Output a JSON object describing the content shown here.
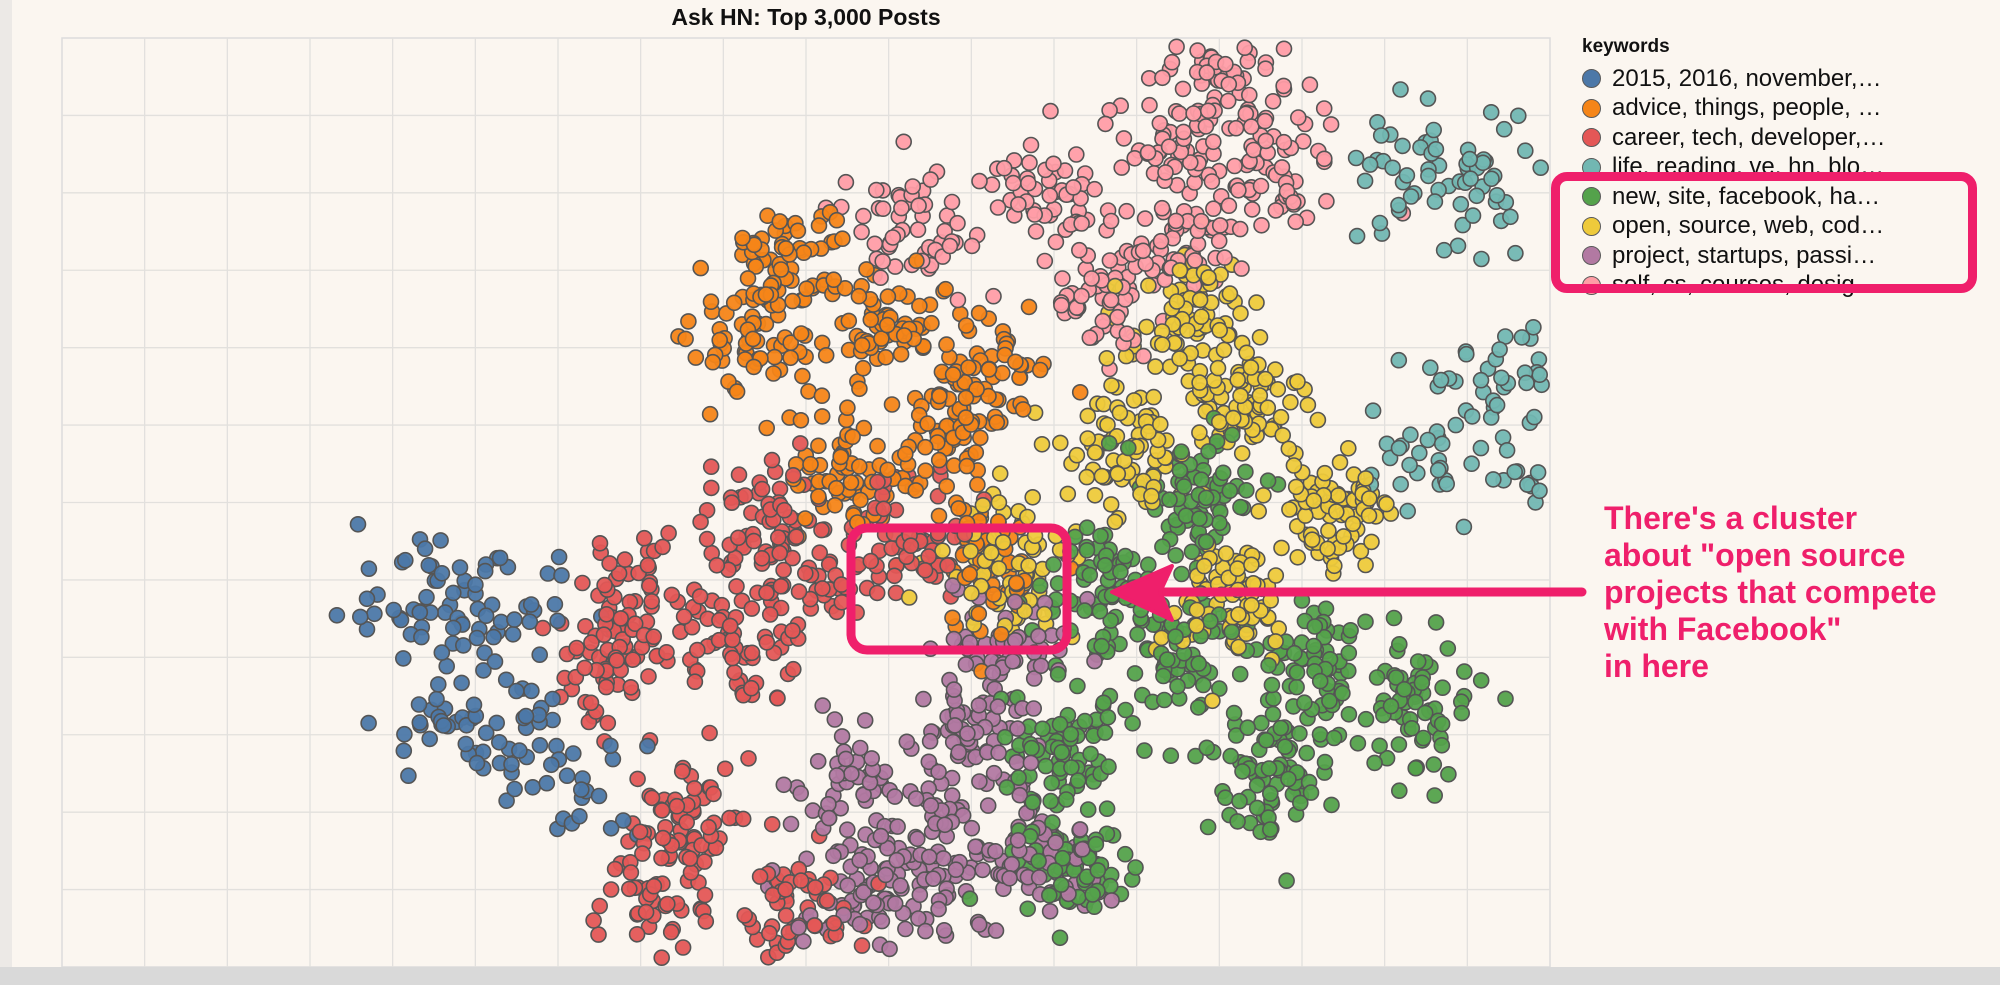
{
  "chart_data": {
    "type": "scatter",
    "title": "Ask HN: Top 3,000 Posts",
    "xlabel": "",
    "ylabel": "",
    "grid": true,
    "legend": {
      "title": "keywords",
      "placement": "top-right",
      "entries": [
        {
          "label": "2015, 2016, november,…",
          "color": "#4c78a8"
        },
        {
          "label": "advice, things, people, …",
          "color": "#f58518"
        },
        {
          "label": "career, tech, developer,…",
          "color": "#e45756"
        },
        {
          "label": "life, reading, ve, hn, blo…",
          "color": "#72b7b2"
        },
        {
          "label": "new, site, facebook, ha…",
          "color": "#54a24b"
        },
        {
          "label": "open, source, web, cod…",
          "color": "#eeca3b"
        },
        {
          "label": "project, startups, passi…",
          "color": "#b279a2"
        },
        {
          "label": "self, cs, courses, desig…",
          "color": "#ff9da6"
        }
      ]
    },
    "clusters": [
      {
        "series": "2015, 2016, november,…",
        "centers": [
          [
            4.0,
            4.5
          ],
          [
            4.5,
            4.6
          ],
          [
            5.3,
            4.6
          ],
          [
            4.6,
            2.7
          ],
          [
            5.0,
            2.8
          ],
          [
            5.6,
            2.9
          ],
          [
            6.3,
            1.9
          ],
          [
            5.3,
            3.9
          ]
        ],
        "approx_points": 150
      },
      {
        "series": "advice, things, people, …",
        "centers": [
          [
            8.8,
            8.9
          ],
          [
            8.4,
            7.8
          ],
          [
            9.9,
            8.0
          ],
          [
            10.6,
            6.6
          ],
          [
            9.5,
            6.0
          ],
          [
            11.2,
            7.5
          ],
          [
            11.2,
            4.9
          ]
        ],
        "approx_points": 420
      },
      {
        "series": "career, tech, developer,…",
        "centers": [
          [
            7.0,
            4.5
          ],
          [
            8.4,
            5.4
          ],
          [
            9.2,
            4.8
          ],
          [
            10.3,
            5.3
          ],
          [
            8.2,
            3.9
          ],
          [
            6.6,
            3.6
          ],
          [
            7.6,
            1.6
          ],
          [
            7.2,
            0.6
          ],
          [
            8.9,
            0.4
          ]
        ],
        "approx_points": 480
      },
      {
        "series": "life, reading, ve, hn, blo…",
        "centers": [
          [
            16.5,
            10.1
          ],
          [
            17.2,
            9.8
          ],
          [
            17.6,
            7.4
          ],
          [
            17.9,
            6.1
          ],
          [
            16.6,
            6.6
          ]
        ],
        "approx_points": 170
      },
      {
        "series": "new, site, facebook, ha…",
        "centers": [
          [
            12.1,
            2.5
          ],
          [
            13.6,
            3.7
          ],
          [
            14.6,
            2.1
          ],
          [
            15.2,
            3.6
          ],
          [
            16.3,
            3.0
          ],
          [
            12.6,
            4.6
          ],
          [
            13.7,
            5.8
          ],
          [
            12.2,
            1.0
          ]
        ],
        "approx_points": 560
      },
      {
        "series": "open, source, web, cod…",
        "centers": [
          [
            14.3,
            7.0
          ],
          [
            15.4,
            5.5
          ],
          [
            12.8,
            6.3
          ],
          [
            14.1,
            4.5
          ],
          [
            11.4,
            4.9
          ],
          [
            13.6,
            8.1
          ]
        ],
        "approx_points": 460
      },
      {
        "series": "project, startups, passi…",
        "centers": [
          [
            11.1,
            2.5
          ],
          [
            9.7,
            2.0
          ],
          [
            10.5,
            0.9
          ],
          [
            11.8,
            1.2
          ],
          [
            11.5,
            3.8
          ],
          [
            9.8,
            0.7
          ]
        ],
        "approx_points": 360
      },
      {
        "series": "self, cs, courses, desig…",
        "centers": [
          [
            13.4,
            10.4
          ],
          [
            14.1,
            11.3
          ],
          [
            11.9,
            9.6
          ],
          [
            12.6,
            8.5
          ],
          [
            14.8,
            10.0
          ],
          [
            10.3,
            9.3
          ],
          [
            13.6,
            9.1
          ]
        ],
        "approx_points": 380
      }
    ],
    "xlim": [
      0,
      18
    ],
    "ylim": [
      -0.3,
      11.7
    ]
  },
  "annotation": {
    "text": "There's a cluster\nabout \"open source\nprojects that compete\nwith Facebook\"\nin here",
    "color": "#ef1f6b"
  }
}
